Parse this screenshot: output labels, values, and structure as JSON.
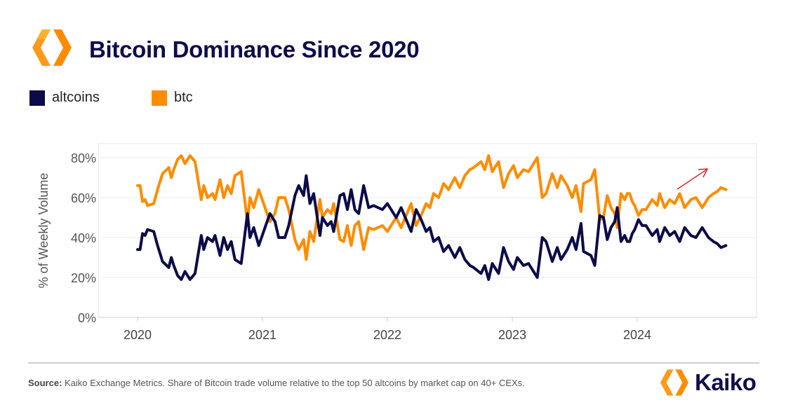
{
  "header": {
    "title": "Bitcoin Dominance Since 2020",
    "logo": "kaiko-hexagon-logo"
  },
  "legend": [
    {
      "label": "altcoins",
      "color": "#0b0b4a"
    },
    {
      "label": "btc",
      "color": "#ff8c00"
    }
  ],
  "footer": {
    "source_label": "Source:",
    "source_text": " Kaiko Exchange Metrics. Share of Bitcoin trade volume relative to the top 50 altcoins by market cap on 40+ CEXs.",
    "brand": "Kaiko"
  },
  "chart_data": {
    "type": "line",
    "title": "Bitcoin Dominance Since 2020",
    "xlabel": "",
    "ylabel": "% of Weekly Volume",
    "xlim": [
      2019.75,
      2024.95
    ],
    "ylim": [
      0,
      85
    ],
    "x_ticks": [
      2020,
      2021,
      2022,
      2023,
      2024
    ],
    "x_tick_labels": [
      "2020",
      "2021",
      "2022",
      "2023",
      "2024"
    ],
    "y_ticks": [
      0,
      20,
      40,
      60,
      80
    ],
    "y_tick_labels": [
      "0%",
      "20%",
      "40%",
      "60%",
      "80%"
    ],
    "grid": "horizontal",
    "legend_position": "top-left",
    "annotation": {
      "type": "arrow",
      "color": "#e02020",
      "direction": "up-right"
    },
    "x": [
      2020.0,
      2020.02,
      2020.04,
      2020.06,
      2020.08,
      2020.13,
      2020.16,
      2020.2,
      2020.25,
      2020.27,
      2020.29,
      2020.32,
      2020.35,
      2020.38,
      2020.42,
      2020.46,
      2020.51,
      2020.53,
      2020.56,
      2020.6,
      2020.62,
      2020.66,
      2020.69,
      2020.72,
      2020.75,
      2020.78,
      2020.83,
      2020.88,
      2020.9,
      2020.93,
      2020.97,
      2021.02,
      2021.06,
      2021.1,
      2021.13,
      2021.18,
      2021.21,
      2021.26,
      2021.29,
      2021.33,
      2021.35,
      2021.38,
      2021.41,
      2021.46,
      2021.48,
      2021.52,
      2021.55,
      2021.57,
      2021.62,
      2021.65,
      2021.68,
      2021.71,
      2021.74,
      2021.77,
      2021.81,
      2021.85,
      2021.89,
      2021.96,
      2022.0,
      2022.07,
      2022.11,
      2022.19,
      2022.23,
      2022.27,
      2022.31,
      2022.34,
      2022.37,
      2022.41,
      2022.45,
      2022.49,
      2022.54,
      2022.58,
      2022.62,
      2022.66,
      2022.69,
      2022.75,
      2022.78,
      2022.81,
      2022.84,
      2022.89,
      2022.93,
      2022.97,
      2023.01,
      2023.04,
      2023.09,
      2023.13,
      2023.2,
      2023.24,
      2023.27,
      2023.32,
      2023.36,
      2023.39,
      2023.44,
      2023.48,
      2023.51,
      2023.55,
      2023.57,
      2023.63,
      2023.66,
      2023.7,
      2023.73,
      2023.76,
      2023.79,
      2023.82,
      2023.84,
      2023.87,
      2023.9,
      2023.92,
      2023.94,
      2023.96,
      2023.98,
      2024.01,
      2024.04,
      2024.07,
      2024.1,
      2024.12,
      2024.16,
      2024.18,
      2024.22,
      2024.26,
      2024.3,
      2024.34,
      2024.38,
      2024.43,
      2024.47,
      2024.52,
      2024.57,
      2024.61,
      2024.64,
      2024.67,
      2024.71
    ],
    "series": [
      {
        "name": "altcoins",
        "color": "#0b0b4a",
        "values": [
          34,
          34,
          42,
          41,
          44,
          43,
          36,
          28,
          25,
          30,
          26,
          21,
          19,
          23,
          19,
          22,
          41,
          34,
          40,
          38,
          41,
          31,
          40,
          34,
          38,
          29,
          27,
          52,
          40,
          45,
          36,
          45,
          52,
          48,
          40,
          40,
          46,
          61,
          66,
          61,
          71,
          57,
          62,
          41,
          50,
          46,
          48,
          43,
          61,
          62,
          54,
          64,
          54,
          52,
          66,
          55,
          56,
          54,
          57,
          50,
          55,
          43,
          54,
          49,
          43,
          45,
          38,
          40,
          33,
          36,
          30,
          35,
          29,
          26,
          25,
          22,
          26,
          19,
          27,
          22,
          35,
          28,
          24,
          30,
          26,
          27,
          20,
          40,
          38,
          28,
          35,
          29,
          34,
          40,
          34,
          47,
          33,
          31,
          26,
          51,
          50,
          39,
          45,
          48,
          55,
          38,
          41,
          38,
          38,
          42,
          44,
          49,
          46,
          46,
          43,
          41,
          44,
          38,
          45,
          41,
          43,
          38,
          45,
          41,
          40,
          45,
          40,
          38,
          37,
          35,
          36
        ]
      },
      {
        "name": "btc",
        "color": "#ff8c00",
        "values": [
          66,
          66,
          58,
          59,
          56,
          57,
          64,
          72,
          75,
          70,
          74,
          79,
          81,
          77,
          81,
          78,
          59,
          66,
          60,
          62,
          59,
          69,
          60,
          66,
          62,
          71,
          73,
          48,
          60,
          55,
          64,
          55,
          48,
          52,
          60,
          60,
          54,
          39,
          34,
          39,
          29,
          43,
          38,
          59,
          50,
          54,
          52,
          57,
          39,
          38,
          46,
          36,
          46,
          48,
          34,
          45,
          44,
          46,
          43,
          50,
          45,
          57,
          46,
          51,
          57,
          55,
          62,
          60,
          67,
          64,
          70,
          65,
          71,
          74,
          75,
          78,
          74,
          81,
          73,
          78,
          65,
          72,
          76,
          70,
          74,
          73,
          80,
          60,
          62,
          72,
          65,
          71,
          66,
          60,
          66,
          53,
          67,
          69,
          74,
          49,
          50,
          61,
          55,
          52,
          45,
          62,
          59,
          62,
          62,
          58,
          56,
          51,
          54,
          54,
          57,
          59,
          56,
          62,
          55,
          59,
          57,
          62,
          55,
          59,
          60,
          55,
          60,
          62,
          63,
          65,
          64
        ]
      }
    ]
  }
}
